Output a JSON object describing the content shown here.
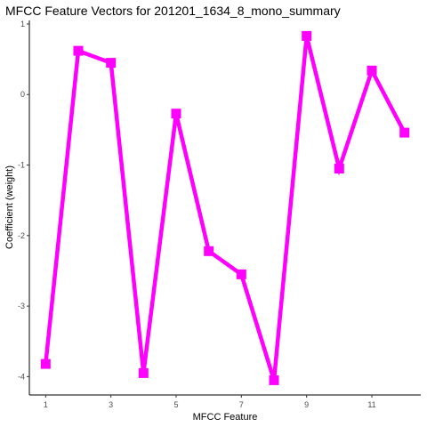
{
  "chart_data": {
    "type": "line",
    "title": "MFCC Feature Vectors for 201201_1634_8_mono_summary",
    "xlabel": "MFCC Feature",
    "ylabel": "Coefficient (weight)",
    "x": [
      1,
      2,
      3,
      4,
      5,
      6,
      7,
      8,
      9,
      10,
      11,
      12
    ],
    "values": [
      -3.82,
      0.62,
      0.45,
      -3.95,
      -0.27,
      -2.22,
      -2.55,
      -4.05,
      0.83,
      -1.05,
      0.34,
      -0.54
    ],
    "xlim": [
      0.5,
      12.5
    ],
    "ylim": [
      -4.26,
      1.05
    ],
    "xticks": [
      1,
      3,
      5,
      7,
      9,
      11
    ],
    "yticks": [
      1,
      0,
      -1,
      -2,
      -3,
      -4
    ],
    "xtick_labels": [
      "1",
      "3",
      "5",
      "7",
      "9",
      "11"
    ],
    "ytick_labels": [
      "1",
      "0",
      "-1",
      "-2",
      "-3",
      "-4"
    ],
    "grid": false,
    "marker": "square",
    "color": "#FF00FF"
  }
}
